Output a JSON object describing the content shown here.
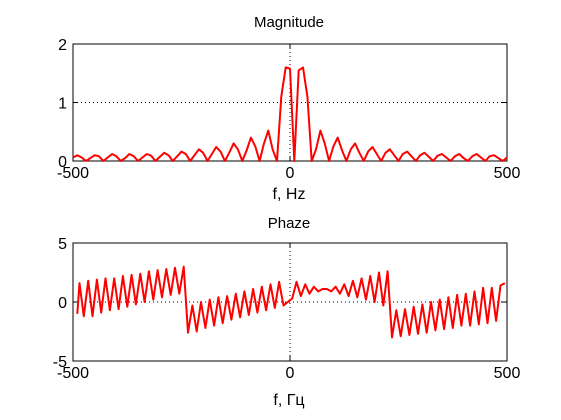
{
  "chart_data": [
    {
      "type": "line",
      "title": "Magnitude",
      "xlabel": "f, Hz",
      "ylabel": "",
      "xlim": [
        -500,
        500
      ],
      "ylim": [
        0,
        2
      ],
      "xticks": [
        -500,
        0,
        500
      ],
      "yticks": [
        0,
        1,
        2
      ],
      "grid": "dotted at x=0 and y=1",
      "series": [
        {
          "color": "#ff0000",
          "x": [
            -500,
            -490,
            -480,
            -470,
            -460,
            -450,
            -440,
            -430,
            -420,
            -410,
            -400,
            -390,
            -380,
            -370,
            -360,
            -350,
            -340,
            -330,
            -320,
            -310,
            -300,
            -290,
            -280,
            -270,
            -260,
            -250,
            -240,
            -230,
            -220,
            -210,
            -200,
            -190,
            -180,
            -170,
            -160,
            -150,
            -140,
            -130,
            -120,
            -110,
            -100,
            -90,
            -80,
            -70,
            -60,
            -50,
            -40,
            -30,
            -20,
            -10,
            0,
            10,
            20,
            30,
            40,
            50,
            60,
            70,
            80,
            90,
            100,
            110,
            120,
            130,
            140,
            150,
            160,
            170,
            180,
            190,
            200,
            210,
            220,
            230,
            240,
            250,
            260,
            270,
            280,
            290,
            300,
            310,
            320,
            330,
            340,
            350,
            360,
            370,
            380,
            390,
            400,
            410,
            420,
            430,
            440,
            450,
            460,
            470,
            480,
            490,
            500
          ],
          "values": [
            0.06,
            0.1,
            0.06,
            0.0,
            0.05,
            0.1,
            0.08,
            0.0,
            0.06,
            0.12,
            0.08,
            0.0,
            0.05,
            0.12,
            0.08,
            0.0,
            0.06,
            0.12,
            0.09,
            0.0,
            0.07,
            0.14,
            0.1,
            0.0,
            0.08,
            0.16,
            0.12,
            0.0,
            0.1,
            0.2,
            0.14,
            0.0,
            0.12,
            0.24,
            0.16,
            0.0,
            0.14,
            0.3,
            0.2,
            0.0,
            0.18,
            0.4,
            0.25,
            0.0,
            0.3,
            0.52,
            0.2,
            0.0,
            1.1,
            1.6,
            1.58,
            0.0,
            1.55,
            1.6,
            1.1,
            0.0,
            0.2,
            0.52,
            0.3,
            0.0,
            0.25,
            0.4,
            0.18,
            0.0,
            0.2,
            0.3,
            0.14,
            0.0,
            0.16,
            0.24,
            0.12,
            0.0,
            0.14,
            0.2,
            0.1,
            0.0,
            0.12,
            0.16,
            0.08,
            0.0,
            0.1,
            0.14,
            0.07,
            0.0,
            0.09,
            0.12,
            0.06,
            0.0,
            0.08,
            0.12,
            0.05,
            0.0,
            0.08,
            0.12,
            0.06,
            0.0,
            0.08,
            0.1,
            0.05,
            0.0,
            0.06
          ]
        }
      ]
    },
    {
      "type": "line",
      "title": "Phaze",
      "xlabel": "f, Гц",
      "ylabel": "",
      "xlim": [
        -500,
        500
      ],
      "ylim": [
        -5,
        5
      ],
      "xticks": [
        -500,
        0,
        500
      ],
      "yticks": [
        -5,
        0,
        5
      ],
      "grid": "dotted at x=0 and y=0",
      "series": [
        {
          "color": "#ff0000",
          "x": [
            -490,
            -485,
            -475,
            -465,
            -455,
            -445,
            -435,
            -425,
            -415,
            -405,
            -395,
            -385,
            -375,
            -365,
            -355,
            -345,
            -335,
            -325,
            -315,
            -305,
            -295,
            -285,
            -275,
            -265,
            -255,
            -245,
            -235,
            -225,
            -215,
            -205,
            -195,
            -185,
            -175,
            -165,
            -155,
            -145,
            -135,
            -125,
            -115,
            -105,
            -95,
            -85,
            -75,
            -65,
            -55,
            -45,
            -35,
            -25,
            -15,
            -5,
            5,
            15,
            25,
            35,
            45,
            55,
            65,
            75,
            85,
            95,
            105,
            115,
            125,
            135,
            145,
            155,
            165,
            175,
            185,
            195,
            205,
            215,
            225,
            235,
            245,
            255,
            265,
            275,
            285,
            295,
            305,
            315,
            325,
            335,
            345,
            355,
            365,
            375,
            385,
            395,
            405,
            415,
            425,
            435,
            445,
            455,
            465,
            475,
            485,
            495
          ],
          "values": [
            -1.0,
            1.6,
            -1.2,
            1.8,
            -1.2,
            1.9,
            -0.9,
            2.0,
            -0.7,
            2.0,
            -0.6,
            2.2,
            -0.4,
            2.3,
            -0.2,
            2.4,
            0.0,
            2.6,
            0.2,
            2.7,
            0.4,
            2.8,
            0.6,
            2.9,
            0.7,
            3.0,
            -2.6,
            -0.3,
            -2.5,
            0.0,
            -2.2,
            0.2,
            -2.0,
            0.4,
            -1.8,
            0.5,
            -1.5,
            0.7,
            -1.3,
            0.9,
            -1.1,
            1.1,
            -0.9,
            1.3,
            -0.7,
            1.5,
            -0.5,
            1.7,
            -0.3,
            0.0,
            0.3,
            1.7,
            0.5,
            1.5,
            0.7,
            1.3,
            0.9,
            1.1,
            1.1,
            0.9,
            1.3,
            0.7,
            1.5,
            0.5,
            1.8,
            0.4,
            2.0,
            0.2,
            2.2,
            0.0,
            2.5,
            -0.3,
            2.6,
            -3.0,
            -0.7,
            -2.9,
            -0.6,
            -2.8,
            -0.4,
            -2.7,
            -0.2,
            -2.6,
            0.0,
            -2.4,
            0.2,
            -2.3,
            0.4,
            -2.2,
            0.6,
            -2.0,
            0.7,
            -2.0,
            0.9,
            -1.9,
            1.2,
            -1.8,
            1.2,
            -1.6,
            1.4,
            1.6
          ]
        }
      ]
    }
  ]
}
